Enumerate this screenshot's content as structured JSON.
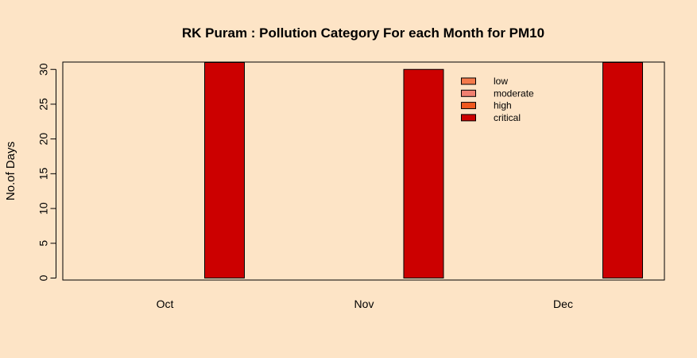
{
  "chart_data": {
    "type": "bar",
    "title": "RK Puram : Pollution Category For each Month for PM10",
    "xlabel": "",
    "ylabel": "No.of Days",
    "categories": [
      "Oct",
      "Nov",
      "Dec"
    ],
    "series": [
      {
        "name": "low",
        "color": "#f47a4b",
        "values": [
          0,
          0,
          0
        ]
      },
      {
        "name": "moderate",
        "color": "#f08070",
        "values": [
          0,
          0,
          0
        ]
      },
      {
        "name": "high",
        "color": "#f0581e",
        "values": [
          0,
          0,
          0
        ]
      },
      {
        "name": "critical",
        "color": "#cc0000",
        "values": [
          31,
          30,
          31
        ]
      }
    ],
    "ylim": [
      0,
      31
    ],
    "yticks": [
      0,
      5,
      10,
      15,
      20,
      25,
      30
    ],
    "grid": false,
    "legend": "top-right",
    "colors": {
      "background": "#fde4c6",
      "axis": "#000000"
    }
  }
}
